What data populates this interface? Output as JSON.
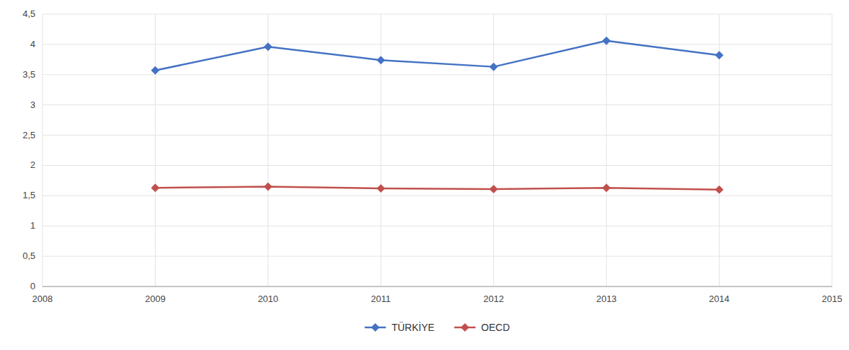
{
  "chart_data": {
    "type": "line",
    "x": [
      2009,
      2010,
      2011,
      2012,
      2013,
      2014
    ],
    "series": [
      {
        "name": "TÜRKİYE",
        "color": "#4472C4",
        "marker": "diamond",
        "values": [
          3.57,
          3.96,
          3.74,
          3.63,
          4.06,
          3.82
        ]
      },
      {
        "name": "OECD",
        "color": "#C0504D",
        "marker": "diamond",
        "values": [
          1.63,
          1.65,
          1.62,
          1.61,
          1.63,
          1.6
        ]
      }
    ],
    "xlim": [
      2008,
      2015
    ],
    "xticks": [
      2008,
      2009,
      2010,
      2011,
      2012,
      2013,
      2014,
      2015
    ],
    "ylim": [
      0,
      4.5
    ],
    "yticks": [
      0,
      {
        "value": 0.5,
        "label": "0,5"
      },
      1,
      {
        "value": 1.5,
        "label": "1,5"
      },
      2,
      {
        "value": 2.5,
        "label": "2,5"
      },
      3,
      {
        "value": 3.5,
        "label": "3,5"
      },
      4,
      {
        "value": 4.5,
        "label": "4,5"
      }
    ],
    "grid": true,
    "legend": "bottom"
  }
}
